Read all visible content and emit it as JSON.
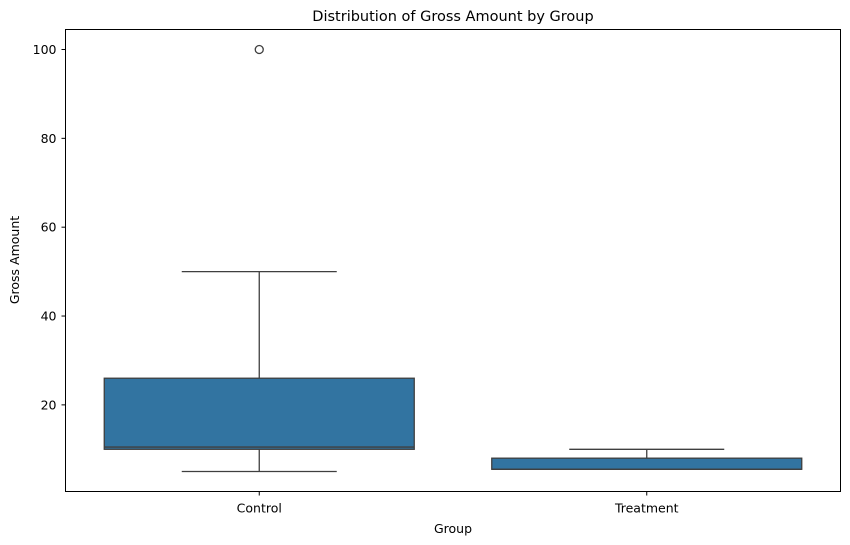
{
  "chart_data": {
    "type": "box",
    "title": "Distribution of Gross Amount by Group",
    "xlabel": "Group",
    "ylabel": "Gross Amount",
    "categories": [
      "Control",
      "Treatment"
    ],
    "ylim": [
      0.5,
      104.5
    ],
    "yticks": [
      20,
      40,
      60,
      80,
      100
    ],
    "grid": false,
    "legend": "none",
    "box_color": "#3274a1",
    "line_color": "#3f3f3f",
    "boxes": [
      {
        "category": "Control",
        "whisker_low": 5,
        "q1": 10,
        "median": 10.5,
        "q3": 26,
        "whisker_high": 50,
        "outliers": [
          100
        ]
      },
      {
        "category": "Treatment",
        "whisker_low": 5.5,
        "q1": 5.5,
        "median": 5.5,
        "q3": 8,
        "whisker_high": 10,
        "outliers": []
      }
    ]
  }
}
